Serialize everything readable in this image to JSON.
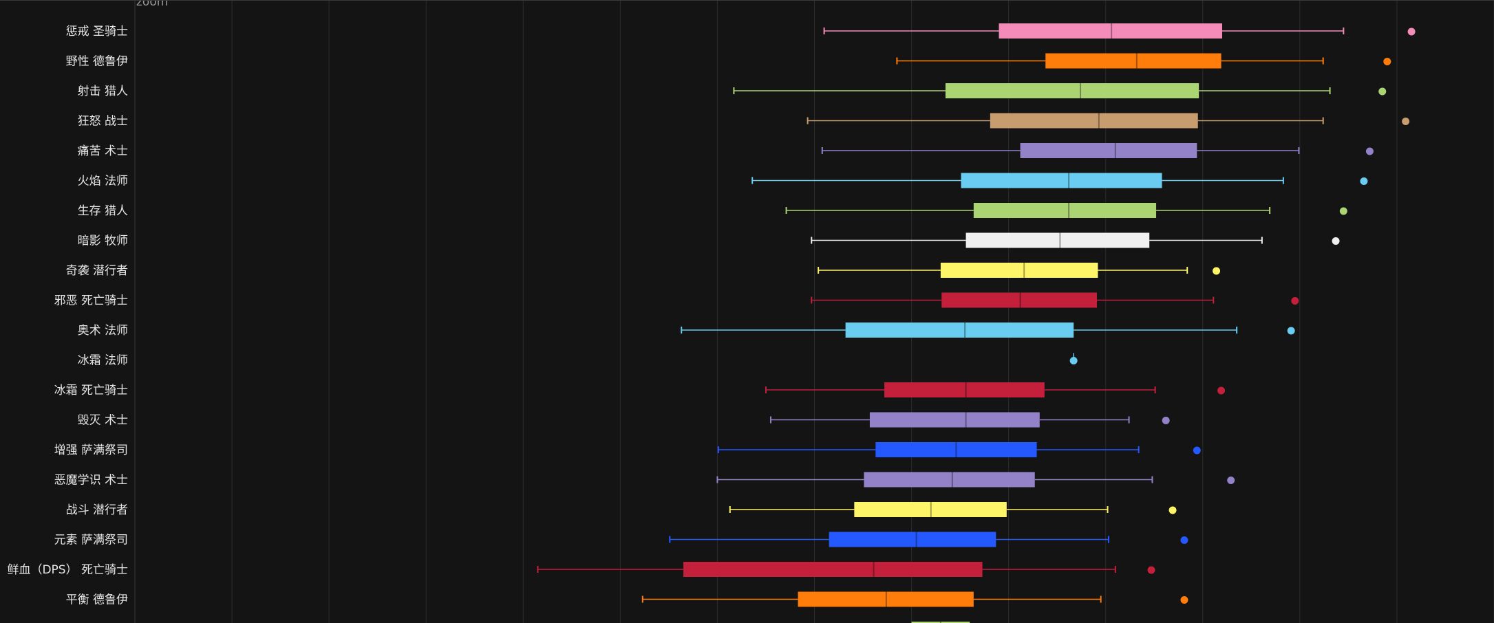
{
  "zoom_label": "zoom",
  "chart_data": {
    "type": "boxplot",
    "orientation": "horizontal",
    "x_range": [
      0,
      14
    ],
    "grid": true,
    "categories": [
      "惩戒 圣骑士",
      "野性 德鲁伊",
      "射击 猎人",
      "狂怒 战士",
      "痛苦 术士",
      "火焰 法师",
      "生存 猎人",
      "暗影 牧师",
      "奇袭 潜行者",
      "邪恶 死亡骑士",
      "奥术 法师",
      "冰霜 法师",
      "冰霜 死亡骑士",
      "毁灭 术士",
      "增强 萨满祭司",
      "恶魔学识 术士",
      "战斗 潜行者",
      "元素 萨满祭司",
      "鲜血（DPS） 死亡骑士",
      "平衡 德鲁伊",
      ""
    ],
    "series": [
      {
        "color": "#f48cba",
        "min": 7.1,
        "q1": 8.9,
        "median": 10.06,
        "q3": 11.2,
        "max": 12.45,
        "outlier": 13.15
      },
      {
        "color": "#ff7d0a",
        "min": 7.85,
        "q1": 9.38,
        "median": 10.32,
        "q3": 11.19,
        "max": 12.24,
        "outlier": 12.9
      },
      {
        "color": "#abd473",
        "min": 6.17,
        "q1": 8.35,
        "median": 9.74,
        "q3": 10.96,
        "max": 12.31,
        "outlier": 12.85
      },
      {
        "color": "#c79c6e",
        "min": 6.93,
        "q1": 8.81,
        "median": 9.93,
        "q3": 10.95,
        "max": 12.24,
        "outlier": 13.09
      },
      {
        "color": "#9482c9",
        "min": 7.08,
        "q1": 9.12,
        "median": 10.1,
        "q3": 10.94,
        "max": 11.99,
        "outlier": 12.72
      },
      {
        "color": "#69ccf0",
        "min": 6.36,
        "q1": 8.51,
        "median": 9.62,
        "q3": 10.58,
        "max": 11.83,
        "outlier": 12.66
      },
      {
        "color": "#abd473",
        "min": 6.71,
        "q1": 8.64,
        "median": 9.62,
        "q3": 10.52,
        "max": 11.69,
        "outlier": 12.45
      },
      {
        "color": "#f0f0f0",
        "min": 6.97,
        "q1": 8.56,
        "median": 9.53,
        "q3": 10.45,
        "max": 11.61,
        "outlier": 12.37
      },
      {
        "color": "#fff569",
        "min": 7.04,
        "q1": 8.3,
        "median": 9.16,
        "q3": 9.92,
        "max": 10.84,
        "outlier": 11.14
      },
      {
        "color": "#c41f3b",
        "min": 6.97,
        "q1": 8.31,
        "median": 9.12,
        "q3": 9.91,
        "max": 11.11,
        "outlier": 11.95
      },
      {
        "color": "#69ccf0",
        "min": 5.63,
        "q1": 7.32,
        "median": 8.55,
        "q3": 9.67,
        "max": 11.35,
        "outlier": 11.91
      },
      {
        "color": "#69ccf0",
        "min": 9.67,
        "q1": 9.67,
        "median": 9.67,
        "q3": 9.67,
        "max": 9.67,
        "outlier": 9.67
      },
      {
        "color": "#c41f3b",
        "min": 6.5,
        "q1": 7.72,
        "median": 8.56,
        "q3": 9.37,
        "max": 10.51,
        "outlier": 11.19
      },
      {
        "color": "#9482c9",
        "min": 6.55,
        "q1": 7.57,
        "median": 8.56,
        "q3": 9.32,
        "max": 10.24,
        "outlier": 10.62
      },
      {
        "color": "#2459ff",
        "min": 6.01,
        "q1": 7.63,
        "median": 8.46,
        "q3": 9.29,
        "max": 10.34,
        "outlier": 10.94
      },
      {
        "color": "#9482c9",
        "min": 6.0,
        "q1": 7.51,
        "median": 8.42,
        "q3": 9.27,
        "max": 10.48,
        "outlier": 11.29
      },
      {
        "color": "#fff569",
        "min": 6.13,
        "q1": 7.41,
        "median": 8.2,
        "q3": 8.98,
        "max": 10.02,
        "outlier": 10.69
      },
      {
        "color": "#2459ff",
        "min": 5.51,
        "q1": 7.15,
        "median": 8.05,
        "q3": 8.87,
        "max": 10.03,
        "outlier": 10.81
      },
      {
        "color": "#c41f3b",
        "min": 4.15,
        "q1": 5.65,
        "median": 7.61,
        "q3": 8.73,
        "max": 10.1,
        "outlier": 10.47
      },
      {
        "color": "#ff7d0a",
        "min": 5.23,
        "q1": 6.83,
        "median": 7.74,
        "q3": 8.64,
        "max": 9.95,
        "outlier": 10.81
      },
      {
        "color": "#abd473",
        "min": null,
        "q1": 8.0,
        "median": 8.3,
        "q3": 8.6,
        "max": null,
        "outlier": null
      }
    ]
  }
}
